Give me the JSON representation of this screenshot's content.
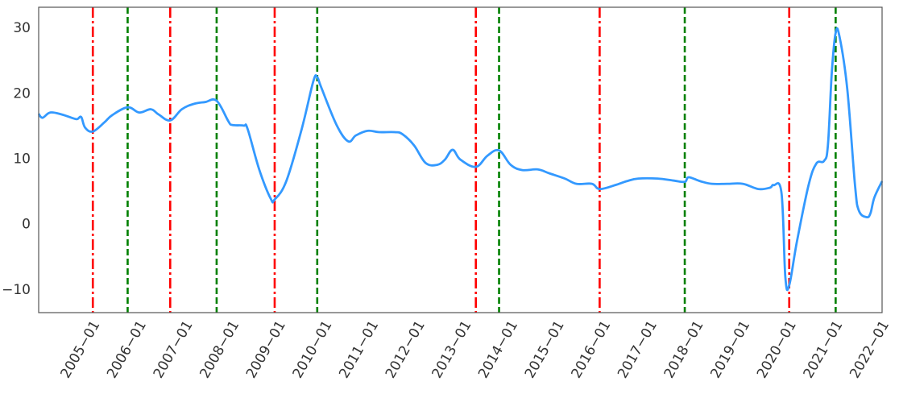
{
  "chart_data": {
    "type": "line",
    "title": "",
    "xlabel": "",
    "ylabel": "",
    "xlim": [
      "2003-11",
      "2022-01"
    ],
    "ylim": [
      -13.6,
      33.1
    ],
    "grid": false,
    "y_ticks": [
      -10,
      0,
      10,
      20,
      30
    ],
    "x_ticks": [
      "2005-01",
      "2006-01",
      "2007-01",
      "2008-01",
      "2009-01",
      "2010-01",
      "2011-01",
      "2012-01",
      "2013-01",
      "2014-01",
      "2015-01",
      "2016-01",
      "2017-01",
      "2018-01",
      "2019-01",
      "2020-01",
      "2021-01",
      "2022-01"
    ],
    "series": [
      {
        "color": "#3399ff",
        "points": [
          [
            "2003-11",
            16.8
          ],
          [
            "2003-12",
            16.2
          ],
          [
            "2004-02",
            17.0
          ],
          [
            "2004-05",
            16.7
          ],
          [
            "2004-08",
            16.1
          ],
          [
            "2004-09",
            16.0
          ],
          [
            "2004-10",
            16.3
          ],
          [
            "2004-11",
            14.7
          ],
          [
            "2005-01",
            14.1
          ],
          [
            "2005-04",
            15.5
          ],
          [
            "2005-06",
            16.6
          ],
          [
            "2005-10",
            17.8
          ],
          [
            "2006-01",
            17.0
          ],
          [
            "2006-04",
            17.5
          ],
          [
            "2006-06",
            16.7
          ],
          [
            "2006-09",
            15.8
          ],
          [
            "2006-12",
            17.5
          ],
          [
            "2007-03",
            18.3
          ],
          [
            "2007-06",
            18.6
          ],
          [
            "2007-09",
            18.8
          ],
          [
            "2007-12",
            15.7
          ],
          [
            "2008-01",
            15.1
          ],
          [
            "2008-04",
            15.0
          ],
          [
            "2008-05",
            14.5
          ],
          [
            "2008-08",
            8.3
          ],
          [
            "2008-11",
            3.8
          ],
          [
            "2008-12",
            3.7
          ],
          [
            "2009-03",
            6.5
          ],
          [
            "2009-07",
            14.5
          ],
          [
            "2009-10",
            21.8
          ],
          [
            "2009-11",
            22.4
          ],
          [
            "2009-12",
            20.9
          ],
          [
            "2010-04",
            15.1
          ],
          [
            "2010-07",
            12.6
          ],
          [
            "2010-09",
            13.5
          ],
          [
            "2010-12",
            14.2
          ],
          [
            "2011-03",
            14.0
          ],
          [
            "2011-07",
            14.0
          ],
          [
            "2011-09",
            13.7
          ],
          [
            "2011-12",
            12.0
          ],
          [
            "2012-03",
            9.3
          ],
          [
            "2012-06",
            9.0
          ],
          [
            "2012-08",
            9.8
          ],
          [
            "2012-10",
            11.3
          ],
          [
            "2012-12",
            9.8
          ],
          [
            "2013-04",
            8.7
          ],
          [
            "2013-07",
            10.4
          ],
          [
            "2013-10",
            11.2
          ],
          [
            "2014-01",
            9.0
          ],
          [
            "2014-04",
            8.2
          ],
          [
            "2014-08",
            8.3
          ],
          [
            "2014-11",
            7.7
          ],
          [
            "2015-03",
            6.9
          ],
          [
            "2015-06",
            6.1
          ],
          [
            "2015-10",
            6.1
          ],
          [
            "2015-12",
            5.3
          ],
          [
            "2016-04",
            5.9
          ],
          [
            "2016-07",
            6.5
          ],
          [
            "2016-10",
            6.9
          ],
          [
            "2017-03",
            6.9
          ],
          [
            "2017-07",
            6.6
          ],
          [
            "2017-10",
            6.4
          ],
          [
            "2017-11",
            7.1
          ],
          [
            "2018-02",
            6.5
          ],
          [
            "2018-05",
            6.1
          ],
          [
            "2018-09",
            6.1
          ],
          [
            "2019-01",
            6.1
          ],
          [
            "2019-05",
            5.3
          ],
          [
            "2019-08",
            5.5
          ],
          [
            "2019-09",
            5.9
          ],
          [
            "2019-11",
            4.7
          ],
          [
            "2019-12",
            -8.2
          ],
          [
            "2020-01",
            -9.4
          ],
          [
            "2020-03",
            -2.7
          ],
          [
            "2020-06",
            5.9
          ],
          [
            "2020-08",
            9.2
          ],
          [
            "2020-10",
            9.6
          ],
          [
            "2020-11",
            12.0
          ],
          [
            "2020-12",
            23.1
          ],
          [
            "2021-01",
            29.2
          ],
          [
            "2021-02",
            28.6
          ],
          [
            "2021-04",
            20.6
          ],
          [
            "2021-06",
            5.9
          ],
          [
            "2021-07",
            2.0
          ],
          [
            "2021-09",
            1.0
          ],
          [
            "2021-10",
            1.6
          ],
          [
            "2021-11",
            4.0
          ],
          [
            "2022-01",
            6.5
          ]
        ]
      }
    ],
    "vlines_red_dashdot": {
      "color": "#ff0000",
      "dates": [
        "2005-01",
        "2006-09",
        "2008-12",
        "2013-04",
        "2015-12",
        "2020-01"
      ]
    },
    "vlines_green_dashed": {
      "color": "#008000",
      "dates": [
        "2005-10",
        "2007-09",
        "2009-11",
        "2013-10",
        "2017-10",
        "2021-01"
      ]
    }
  }
}
